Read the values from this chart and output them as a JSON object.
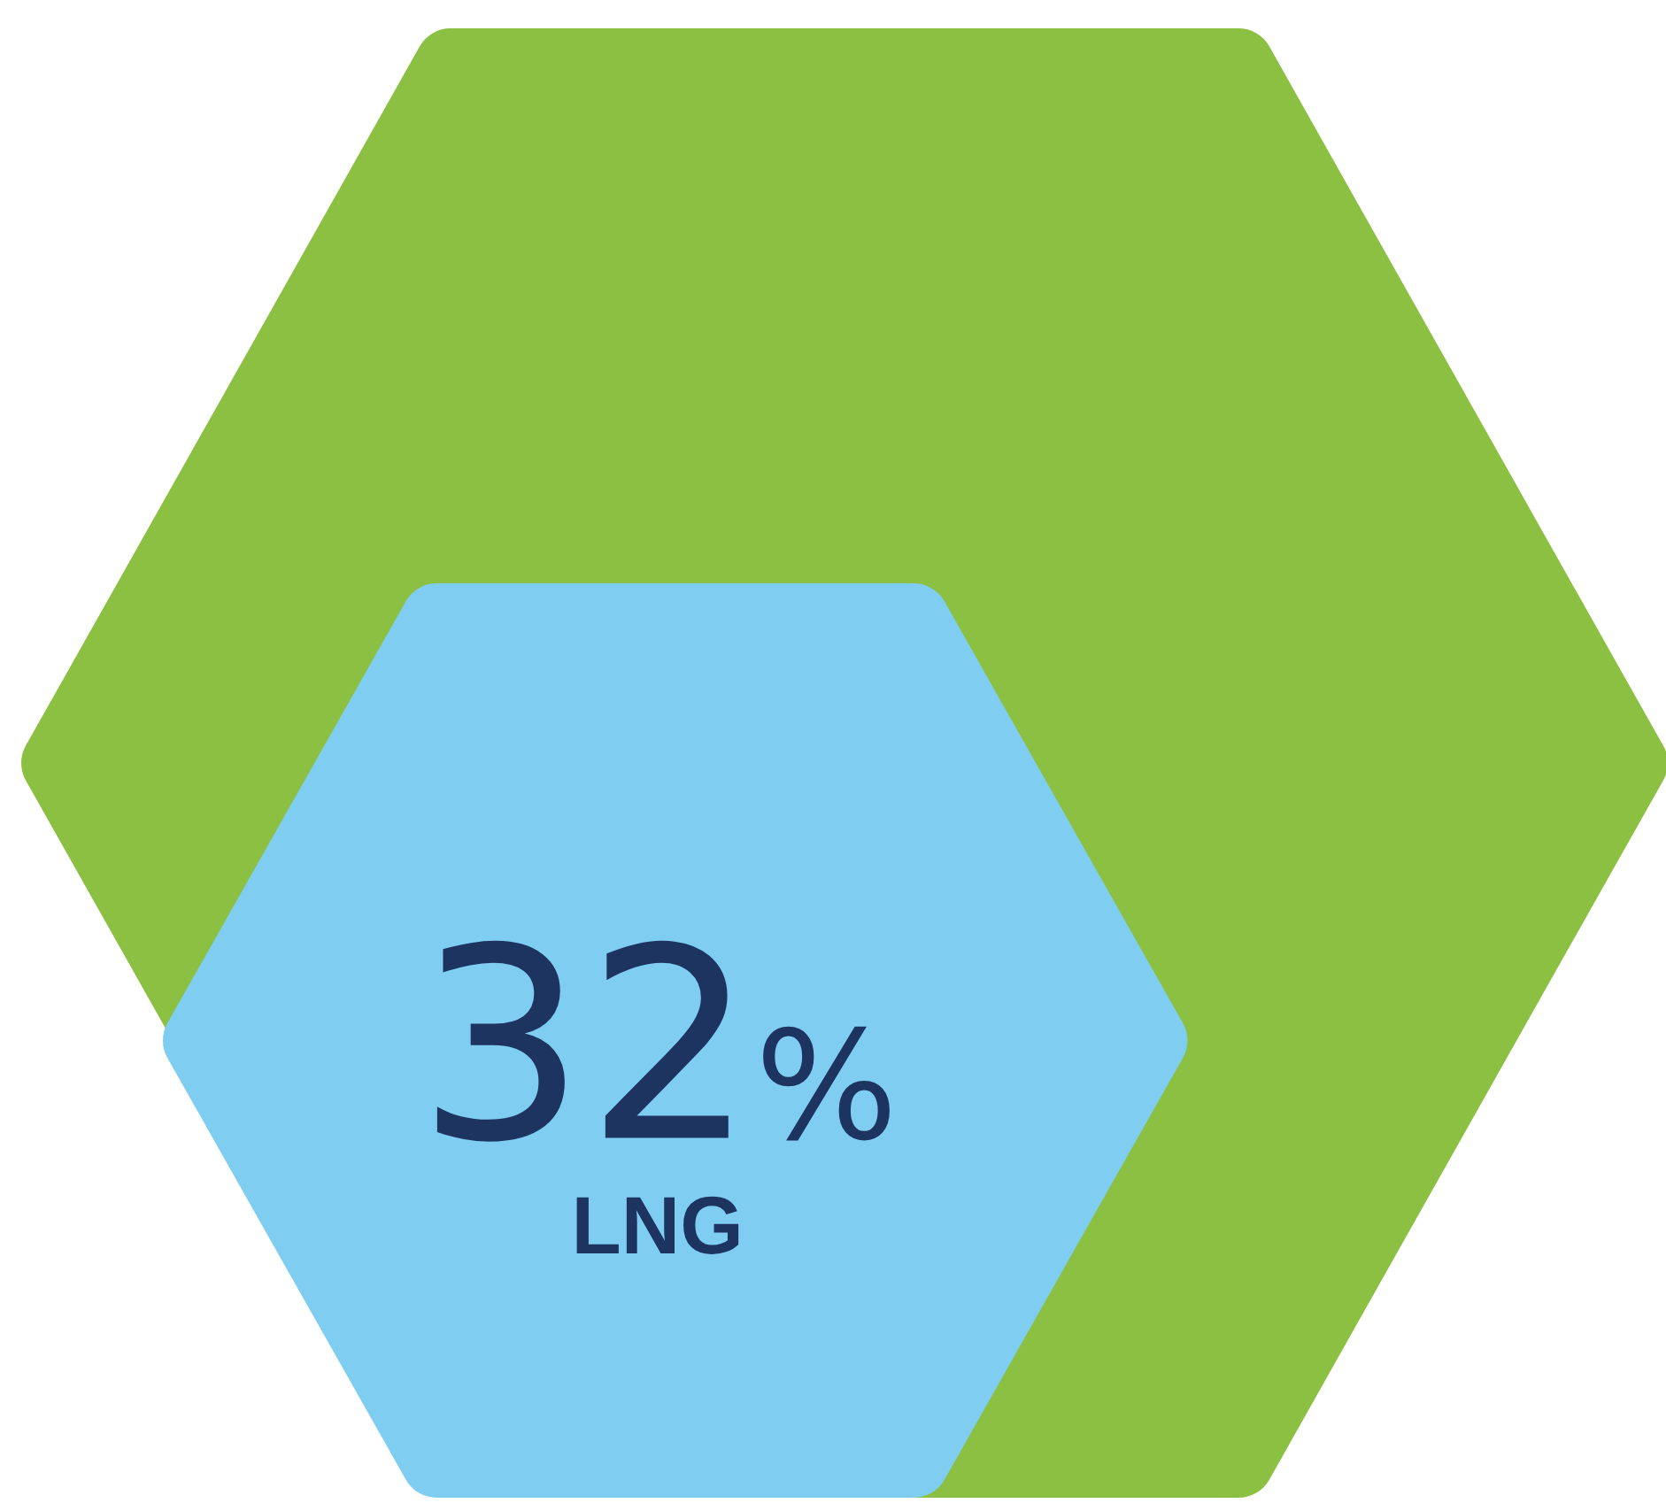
{
  "chart_data": {
    "type": "other",
    "categories": [
      "LNG"
    ],
    "values": [
      32
    ],
    "value_labels": [
      "32%"
    ],
    "colors": [
      "#80cdf2"
    ]
  }
}
